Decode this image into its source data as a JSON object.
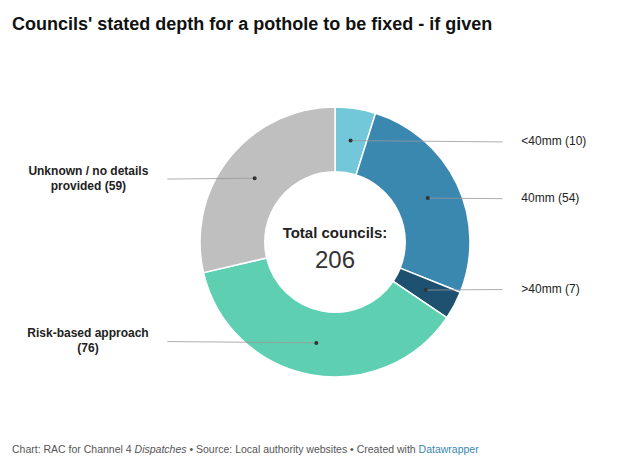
{
  "chart_data": {
    "type": "pie",
    "title": "Councils' stated depth for a pothole to be fixed - if given",
    "categories": [
      "<40mm (10)",
      "40mm (54)",
      ">40mm (7)",
      "Risk-based approach\n(76)",
      "Unknown / no details\nprovided (59)"
    ],
    "values": [
      10,
      54,
      7,
      76,
      59
    ],
    "colors": [
      "#72c8d8",
      "#3a87b0",
      "#1e5070",
      "#5ecfb1",
      "#c0bfc0"
    ],
    "center_label": [
      "Total councils:",
      "206"
    ],
    "footer": [
      {
        "text": "Chart: RAC for Channel 4 "
      },
      {
        "text": "Dispatches"
      },
      {
        "text": " • Source: Local authority websites • Created with "
      },
      {
        "text": "Datawrapper",
        "color": "#3a87b0"
      }
    ]
  }
}
